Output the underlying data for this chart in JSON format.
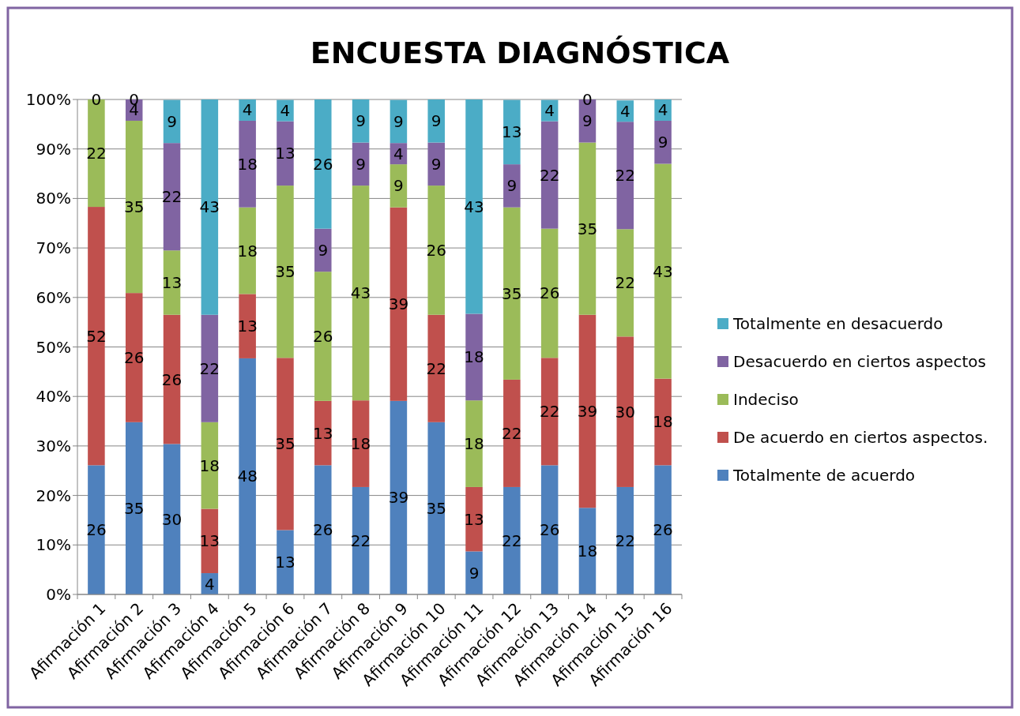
{
  "chart_data": {
    "type": "bar",
    "title": "ENCUESTA DIAGNÓSTICA",
    "stacked": true,
    "grid": "y",
    "legend": "right",
    "categories": [
      "Afirmación 1",
      "Afirmación 2",
      "Afirmación 3",
      "Afirmación 4",
      "Afirmación 5",
      "Afirmación 6",
      "Afirmación 7",
      "Afirmación 8",
      "Afirmación 9",
      "Afirmación 10",
      "Afirmación 11",
      "Afirmación 12",
      "Afirmación 13",
      "Afirmación 14",
      "Afirmación 15",
      "Afirmación 16"
    ],
    "ylim": [
      0,
      100
    ],
    "yticks": [
      {
        "value": 0,
        "label": "0%"
      },
      {
        "value": 10,
        "label": "10%"
      },
      {
        "value": 20,
        "label": "20%"
      },
      {
        "value": 30,
        "label": "30%"
      },
      {
        "value": 40,
        "label": "40%"
      },
      {
        "value": 50,
        "label": "50%"
      },
      {
        "value": 60,
        "label": "60%"
      },
      {
        "value": 70,
        "label": "70%"
      },
      {
        "value": 80,
        "label": "80%"
      },
      {
        "value": 90,
        "label": "90%"
      },
      {
        "value": 100,
        "label": "100%"
      }
    ],
    "series": [
      {
        "name": "Totalmente de acuerdo",
        "color": "#4f81bd",
        "values": [
          26.1,
          34.8,
          30.4,
          4.3,
          47.7,
          13.0,
          26.1,
          21.7,
          39.1,
          34.8,
          8.7,
          21.7,
          26.1,
          17.5,
          21.7,
          26.1
        ],
        "value_labels": [
          "26",
          "35",
          "30",
          "4",
          "48",
          "13",
          "26",
          "22",
          "39",
          "35",
          "9",
          "22",
          "26",
          "18",
          "22",
          "26"
        ]
      },
      {
        "name": "De acuerdo en ciertos aspectos.",
        "color": "#c0504d",
        "values": [
          52.2,
          26.1,
          26.1,
          13.0,
          13.0,
          34.8,
          13.0,
          17.5,
          39.1,
          21.7,
          13.0,
          21.7,
          21.7,
          39.0,
          30.4,
          17.5
        ],
        "value_labels": [
          "52",
          "26",
          "26",
          "13",
          "13",
          "35",
          "13",
          "18",
          "39",
          "22",
          "13",
          "22",
          "22",
          "39",
          "30",
          "18"
        ]
      },
      {
        "name": "Indeciso",
        "color": "#9bbb59",
        "values": [
          21.7,
          34.8,
          13.0,
          17.5,
          17.5,
          34.8,
          26.1,
          43.4,
          8.7,
          26.1,
          17.5,
          34.8,
          26.1,
          34.8,
          21.7,
          43.4
        ],
        "value_labels": [
          "22",
          "35",
          "13",
          "18",
          "18",
          "35",
          "26",
          "43",
          "9",
          "26",
          "18",
          "35",
          "26",
          "35",
          "22",
          "43"
        ]
      },
      {
        "name": "Desacuerdo en ciertos aspectos",
        "color": "#8064a2",
        "values": [
          0,
          4.3,
          21.7,
          21.7,
          17.5,
          13.0,
          8.7,
          8.7,
          4.3,
          8.7,
          17.5,
          8.7,
          21.7,
          8.7,
          21.7,
          8.7
        ],
        "value_labels": [
          null,
          "4",
          "22",
          "22",
          "18",
          "13",
          "9",
          "9",
          "4",
          "9",
          "18",
          "9",
          "22",
          "9",
          "22",
          "9"
        ]
      },
      {
        "name": "Totalmente en desacuerdo",
        "color": "#4bacc6",
        "values": [
          0,
          0,
          8.7,
          43.5,
          4.3,
          4.3,
          26.1,
          8.7,
          8.7,
          8.7,
          43.3,
          13.0,
          4.3,
          0,
          4.3,
          4.3
        ],
        "value_labels": [
          "0",
          "0",
          "9",
          "43",
          "4",
          "4",
          "26",
          "9",
          "9",
          "9",
          "43",
          "13",
          "4",
          "0",
          "4",
          "4"
        ]
      }
    ]
  }
}
